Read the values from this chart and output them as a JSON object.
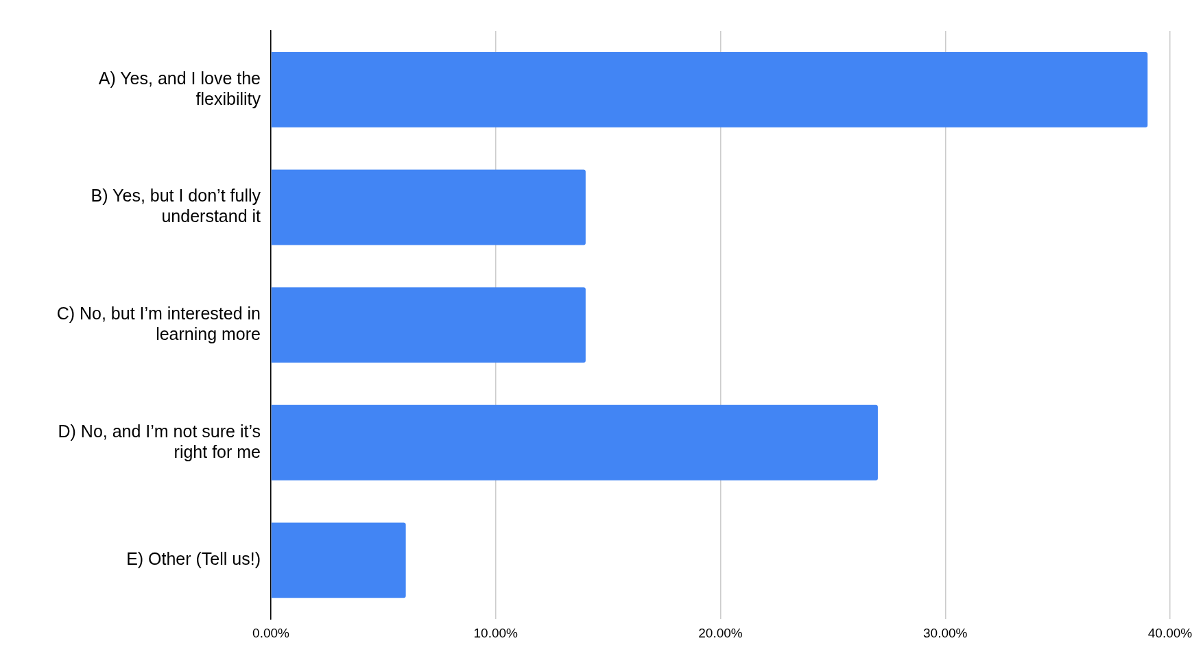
{
  "chart_data": {
    "type": "bar",
    "orientation": "horizontal",
    "categories": [
      "A) Yes, and I love the flexibility",
      "B) Yes, but I don’t fully understand it",
      "C) No, but I’m interested in learning more",
      "D) No, and I’m not sure it’s right for me",
      "E) Other (Tell us!)"
    ],
    "values": [
      39,
      14,
      14,
      27,
      6
    ],
    "color": "#4285f4",
    "xlim": [
      0,
      40
    ],
    "xticks": [
      {
        "value": 0,
        "label": "0.00%"
      },
      {
        "value": 10,
        "label": "10.00%"
      },
      {
        "value": 20,
        "label": "20.00%"
      },
      {
        "value": 30,
        "label": "30.00%"
      },
      {
        "value": 40,
        "label": "40.00%"
      }
    ],
    "grid": "x",
    "legend": false
  }
}
